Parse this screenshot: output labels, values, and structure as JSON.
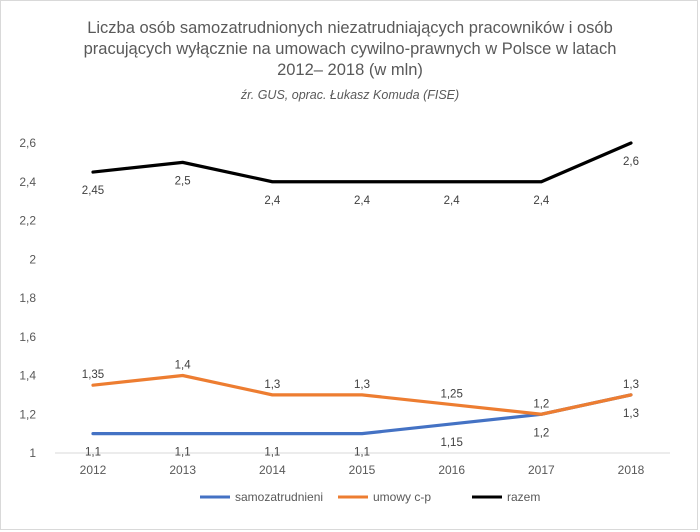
{
  "chart_data": {
    "type": "line",
    "title_lines": [
      "Liczba osób samozatrudnionych niezatrudniających pracowników i osób",
      "pracujących wyłącznie na umowach cywilno-prawnych w Polsce w latach",
      "2012– 2018 (w mln)"
    ],
    "subtitle": "źr. GUS, oprac. Łukasz Komuda (FISE)",
    "categories": [
      "2012",
      "2013",
      "2014",
      "2015",
      "2016",
      "2017",
      "2018"
    ],
    "ylim": [
      1,
      2.6
    ],
    "yticks": [
      "1",
      "1,2",
      "1,4",
      "1,6",
      "1,8",
      "2",
      "2,2",
      "2,4",
      "2,6"
    ],
    "grid": false,
    "legend_position": "bottom",
    "series": [
      {
        "name": "samozatrudnieni",
        "color": "#4472c4",
        "values": [
          1.1,
          1.1,
          1.1,
          1.1,
          1.15,
          1.2,
          1.3
        ],
        "labels": [
          "1,1",
          "1,1",
          "1,1",
          "1,1",
          "1,15",
          "1,2",
          "1,3"
        ]
      },
      {
        "name": "umowy c-p",
        "color": "#ed7d31",
        "values": [
          1.35,
          1.4,
          1.3,
          1.3,
          1.25,
          1.2,
          1.3
        ],
        "labels": [
          "1,35",
          "1,4",
          "1,3",
          "1,3",
          "1,25",
          "1,2",
          "1,3"
        ]
      },
      {
        "name": "razem",
        "color": "#000000",
        "values": [
          2.45,
          2.5,
          2.4,
          2.4,
          2.4,
          2.4,
          2.6
        ],
        "labels": [
          "2,45",
          "2,5",
          "2,4",
          "2,4",
          "2,4",
          "2,4",
          "2,6"
        ]
      }
    ]
  }
}
